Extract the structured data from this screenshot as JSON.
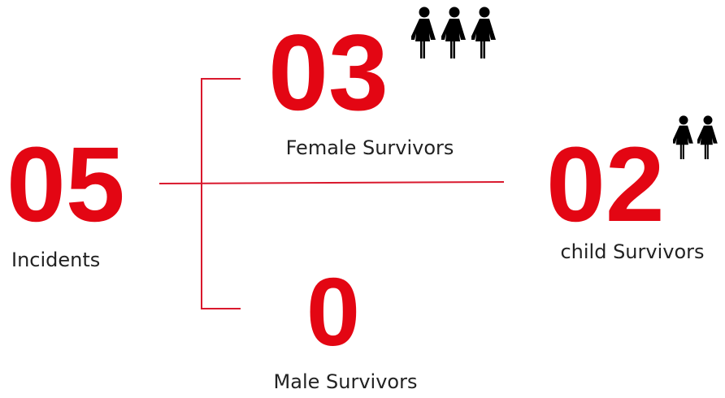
{
  "stats": [
    {
      "number": "05",
      "label": "Incidents"
    },
    {
      "number": "03",
      "label": "Female Survivors"
    },
    {
      "number": "0",
      "label": "Male Survivors"
    },
    {
      "number": "02",
      "label": "child Survivors"
    }
  ]
}
